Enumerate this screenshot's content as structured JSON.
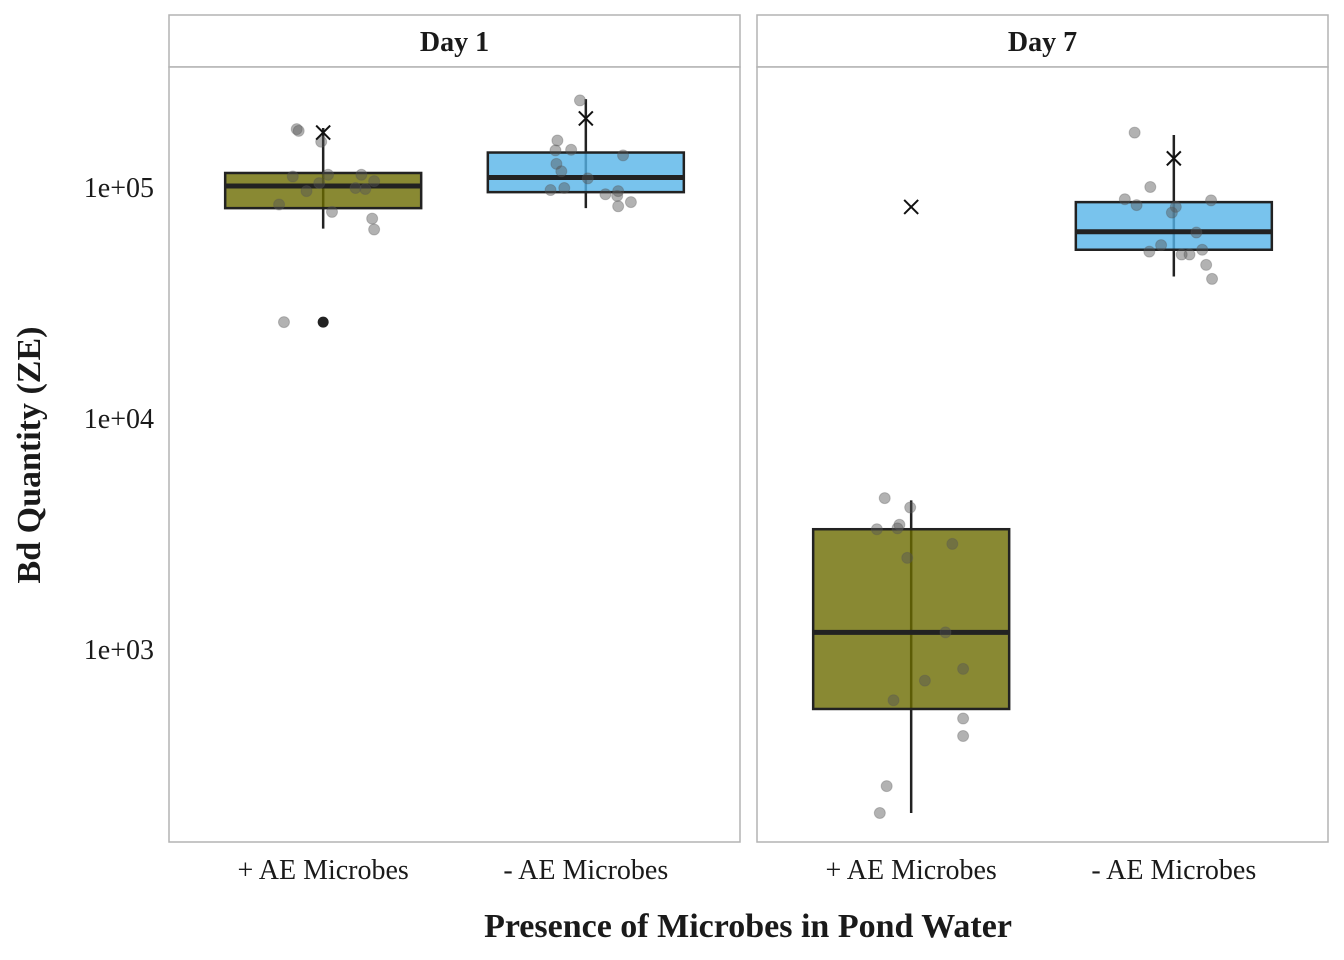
{
  "chart_data": {
    "type": "box",
    "scale_y": "log10",
    "ylabel": "Bd Quantity (ZE)",
    "xlabel": "Presence of Microbes in Pond Water",
    "ylim": [
      150,
      330000
    ],
    "y_ticks": [
      {
        "value": 1000,
        "label": "1e+03"
      },
      {
        "value": 10000,
        "label": "1e+04"
      },
      {
        "value": 100000,
        "label": "1e+05"
      }
    ],
    "categories": [
      "+ AE Microbes",
      "- AE Microbes"
    ],
    "colors": {
      "+ AE Microbes": "#6b6b00",
      "- AE Microbes": "#56b4e9"
    },
    "mean_marker": "x",
    "panels": [
      {
        "title": "Day 1",
        "groups": [
          {
            "category": "+ AE Microbes",
            "whisker_low": 66000,
            "q1": 81000,
            "median": 101000,
            "q3": 115000,
            "whisker_high": 180000,
            "mean": 172000,
            "outliers": [
              26000
            ],
            "points": [
              {
                "dx": -0.27,
                "y": 178000
              },
              {
                "dx": -0.25,
                "y": 175000
              },
              {
                "dx": -0.02,
                "y": 157000
              },
              {
                "dx": -0.31,
                "y": 111000
              },
              {
                "dx": 0.39,
                "y": 113000
              },
              {
                "dx": 0.05,
                "y": 113000
              },
              {
                "dx": 0.52,
                "y": 106000
              },
              {
                "dx": -0.04,
                "y": 104000
              },
              {
                "dx": 0.33,
                "y": 99000
              },
              {
                "dx": 0.43,
                "y": 98000
              },
              {
                "dx": -0.17,
                "y": 96000
              },
              {
                "dx": -0.45,
                "y": 84000
              },
              {
                "dx": 0.09,
                "y": 78000
              },
              {
                "dx": 0.5,
                "y": 73000
              },
              {
                "dx": 0.52,
                "y": 65500
              },
              {
                "dx": -0.4,
                "y": 26000
              }
            ]
          },
          {
            "category": "- AE Microbes",
            "whisker_low": 81000,
            "q1": 95000,
            "median": 110000,
            "q3": 141000,
            "whisker_high": 240000,
            "mean": 198000,
            "outliers": [],
            "points": [
              {
                "dx": -0.06,
                "y": 237000
              },
              {
                "dx": -0.29,
                "y": 159000
              },
              {
                "dx": -0.15,
                "y": 145000
              },
              {
                "dx": -0.31,
                "y": 144000
              },
              {
                "dx": 0.38,
                "y": 137000
              },
              {
                "dx": -0.3,
                "y": 126000
              },
              {
                "dx": -0.25,
                "y": 117000
              },
              {
                "dx": 0.02,
                "y": 109000
              },
              {
                "dx": -0.22,
                "y": 99000
              },
              {
                "dx": -0.36,
                "y": 97000
              },
              {
                "dx": 0.33,
                "y": 96000
              },
              {
                "dx": 0.2,
                "y": 93000
              },
              {
                "dx": 0.32,
                "y": 91500
              },
              {
                "dx": 0.46,
                "y": 86000
              },
              {
                "dx": 0.33,
                "y": 82500
              }
            ]
          }
        ]
      },
      {
        "title": "Day 7",
        "groups": [
          {
            "category": "+ AE Microbes",
            "whisker_low": 195,
            "q1": 550,
            "median": 1180,
            "q3": 3300,
            "whisker_high": 4400,
            "mean": 82000,
            "outliers": [],
            "points": [
              {
                "dx": -0.27,
                "y": 4500
              },
              {
                "dx": -0.01,
                "y": 4100
              },
              {
                "dx": -0.12,
                "y": 3450
              },
              {
                "dx": -0.14,
                "y": 3330
              },
              {
                "dx": -0.35,
                "y": 3300
              },
              {
                "dx": 0.42,
                "y": 2850
              },
              {
                "dx": -0.04,
                "y": 2480
              },
              {
                "dx": 0.35,
                "y": 1180
              },
              {
                "dx": 0.53,
                "y": 820
              },
              {
                "dx": 0.14,
                "y": 730
              },
              {
                "dx": -0.18,
                "y": 600
              },
              {
                "dx": 0.53,
                "y": 500
              },
              {
                "dx": 0.53,
                "y": 420
              },
              {
                "dx": -0.25,
                "y": 255
              },
              {
                "dx": -0.32,
                "y": 195
              }
            ]
          },
          {
            "category": "- AE Microbes",
            "whisker_low": 41000,
            "q1": 53500,
            "median": 64000,
            "q3": 86000,
            "whisker_high": 168000,
            "mean": 133000,
            "outliers": [],
            "points": [
              {
                "dx": -0.4,
                "y": 172000
              },
              {
                "dx": -0.24,
                "y": 100000
              },
              {
                "dx": -0.5,
                "y": 88500
              },
              {
                "dx": 0.38,
                "y": 87500
              },
              {
                "dx": -0.38,
                "y": 83500
              },
              {
                "dx": 0.02,
                "y": 82000
              },
              {
                "dx": -0.02,
                "y": 77500
              },
              {
                "dx": 0.23,
                "y": 63500
              },
              {
                "dx": -0.13,
                "y": 56000
              },
              {
                "dx": 0.29,
                "y": 53500
              },
              {
                "dx": -0.25,
                "y": 52500
              },
              {
                "dx": 0.08,
                "y": 51000
              },
              {
                "dx": 0.16,
                "y": 51000
              },
              {
                "dx": 0.33,
                "y": 46000
              },
              {
                "dx": 0.39,
                "y": 40000
              }
            ]
          }
        ]
      }
    ]
  }
}
